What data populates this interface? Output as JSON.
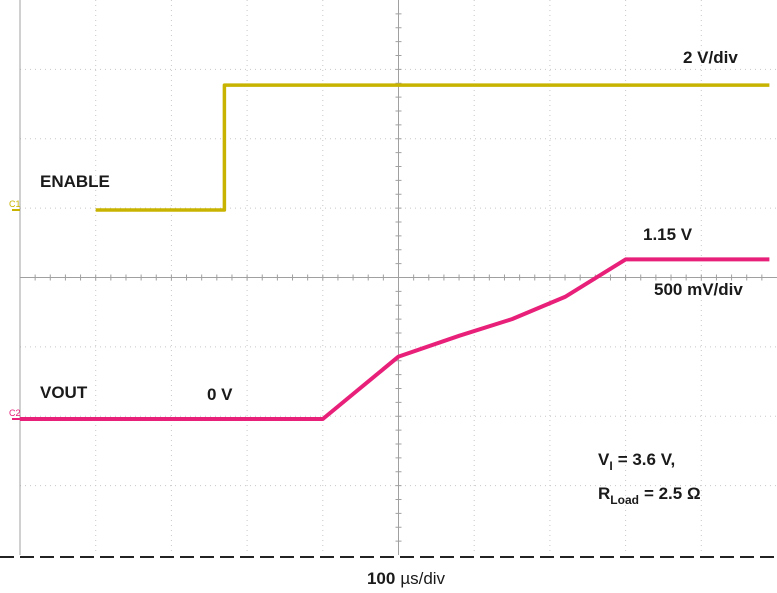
{
  "chart_data": {
    "type": "line",
    "title": "",
    "xlabel_value": "100",
    "xlabel_unit": "µs/div",
    "ylabel": "",
    "x_units": "µs",
    "grid": true,
    "x_divisions": 10,
    "y_divisions": 8,
    "series": [
      {
        "name": "ENABLE",
        "marker": "C1",
        "color": "#c8b400",
        "scale": "2 V/div",
        "x": [
          -400,
          -230,
          -230,
          490
        ],
        "y": [
          0,
          0,
          3.6,
          3.6
        ]
      },
      {
        "name": "VOUT",
        "marker": "C2",
        "color": "#e8207a",
        "scale": "500 mV/div",
        "x": [
          -500,
          -100,
          -60,
          0,
          80,
          150,
          220,
          300,
          490
        ],
        "y": [
          0,
          0,
          0.18,
          0.45,
          0.6,
          0.72,
          0.88,
          1.15,
          1.15
        ]
      }
    ],
    "annotations": {
      "vout_start": "0 V",
      "vout_final": "1.15 V",
      "conditions_line1": {
        "symbol": "V",
        "subscript": "I",
        "value": "= 3.6 V,"
      },
      "conditions_line2": {
        "symbol": "R",
        "subscript": "Load",
        "value": "= 2.5 Ω"
      }
    }
  }
}
